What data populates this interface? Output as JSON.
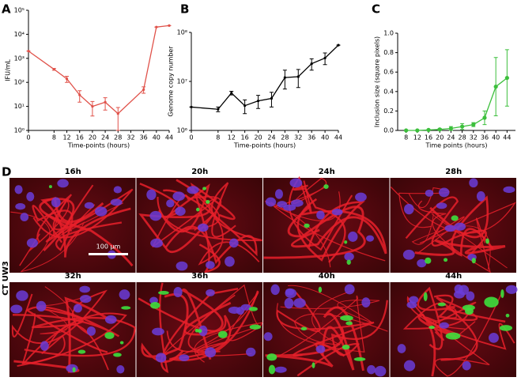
{
  "chart_data": [
    {
      "type": "line",
      "panel_label": "A",
      "xlabel": "Time-points (hours)",
      "ylabel": "IFU/mL",
      "color": "#e0524a",
      "ylog": true,
      "x": [
        0,
        8,
        12,
        16,
        20,
        24,
        28,
        36,
        40,
        44
      ],
      "values": [
        2000,
        350,
        140,
        30,
        10,
        15,
        5,
        50,
        20000,
        23000
      ],
      "errors": [
        0,
        30,
        40,
        15,
        6,
        8,
        4,
        15,
        0,
        0
      ],
      "xlim": [
        0,
        44
      ],
      "xticks": [
        0,
        8,
        12,
        16,
        20,
        24,
        28,
        32,
        36,
        40,
        44
      ],
      "ylim": [
        1,
        100000
      ],
      "yticks": [
        {
          "value": 1,
          "label": "10⁰"
        },
        {
          "value": 10,
          "label": "10¹"
        },
        {
          "value": 100,
          "label": "10²"
        },
        {
          "value": 1000,
          "label": "10³"
        },
        {
          "value": 10000,
          "label": "10⁴"
        },
        {
          "value": 100000,
          "label": "10⁵"
        }
      ]
    },
    {
      "type": "line",
      "panel_label": "B",
      "xlabel": "Time-points (hours)",
      "ylabel": "Genome copy number",
      "color": "#000000",
      "ylog": true,
      "x": [
        0,
        8,
        12,
        16,
        20,
        24,
        28,
        32,
        36,
        40,
        44
      ],
      "values": [
        3000000,
        2700000,
        5800000,
        3200000,
        4000000,
        4500000,
        12000000,
        12500000,
        23000000,
        30000000,
        55000000
      ],
      "errors": [
        0,
        300000,
        500000,
        1000000,
        1200000,
        1500000,
        5000000,
        5000000,
        6000000,
        8000000,
        0
      ],
      "xlim": [
        0,
        44
      ],
      "xticks": [
        0,
        8,
        12,
        16,
        20,
        24,
        28,
        32,
        36,
        40,
        44
      ],
      "ylim": [
        1000000,
        100000000
      ],
      "yticks": [
        {
          "value": 1000000,
          "label": "10⁶"
        },
        {
          "value": 10000000,
          "label": "10⁷"
        },
        {
          "value": 100000000,
          "label": "10⁸"
        }
      ]
    },
    {
      "type": "line",
      "panel_label": "C",
      "xlabel": "Time points (hours)",
      "ylabel": "Inclusion size (square pixels)",
      "color": "#3cbf3c",
      "ylog": false,
      "x": [
        8,
        12,
        16,
        20,
        24,
        28,
        32,
        36,
        40,
        44
      ],
      "values": [
        0,
        0,
        0.005,
        0.01,
        0.02,
        0.04,
        0.06,
        0.13,
        0.45,
        0.54
      ],
      "errors": [
        0,
        0,
        0.005,
        0.01,
        0.02,
        0.03,
        0.02,
        0.07,
        0.3,
        0.29
      ],
      "xlim": [
        5,
        47
      ],
      "xticks": [
        8,
        12,
        16,
        20,
        24,
        28,
        32,
        36,
        40,
        44
      ],
      "ylim": [
        0,
        1
      ],
      "yticks": [
        {
          "value": 0,
          "label": "0.0"
        },
        0.2,
        0.4,
        0.6,
        0.8,
        {
          "value": 1,
          "label": "1.0"
        }
      ]
    }
  ],
  "micrographs": {
    "panel_label": "D",
    "row_label": "CT UW3",
    "scale_bar": "100 µm",
    "titles": [
      "16h",
      "20h",
      "24h",
      "28h",
      "32h",
      "36h",
      "40h",
      "44h"
    ]
  }
}
